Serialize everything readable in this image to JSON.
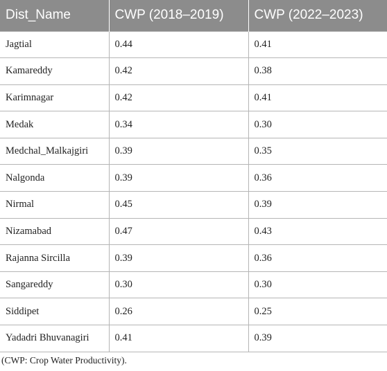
{
  "table": {
    "headers": [
      "Dist_Name",
      "CWP (2018–2019)",
      "CWP (2022–2023)"
    ],
    "rows": [
      [
        "Jagtial",
        "0.44",
        "0.41"
      ],
      [
        "Kamareddy",
        "0.42",
        "0.38"
      ],
      [
        "Karimnagar",
        "0.42",
        "0.41"
      ],
      [
        "Medak",
        "0.34",
        "0.30"
      ],
      [
        "Medchal_Malkajgiri",
        "0.39",
        "0.35"
      ],
      [
        "Nalgonda",
        "0.39",
        "0.36"
      ],
      [
        "Nirmal",
        "0.45",
        "0.39"
      ],
      [
        "Nizamabad",
        "0.47",
        "0.43"
      ],
      [
        "Rajanna Sircilla",
        "0.39",
        "0.36"
      ],
      [
        "Sangareddy",
        "0.30",
        "0.30"
      ],
      [
        "Siddipet",
        "0.26",
        "0.25"
      ],
      [
        "Yadadri Bhuvanagiri",
        "0.41",
        "0.39"
      ]
    ]
  },
  "footnote": "(CWP: Crop Water Productivity)."
}
